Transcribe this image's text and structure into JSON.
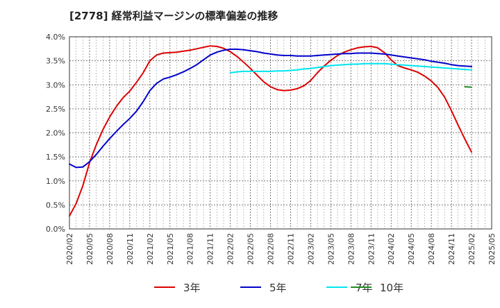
{
  "chart_data": {
    "type": "line",
    "title": "[2778]  経常利益マージンの標準偏差の推移",
    "xlabel": "",
    "ylabel": "",
    "x_ticks": [
      "2020/02",
      "2020/05",
      "2020/08",
      "2020/11",
      "2021/02",
      "2021/05",
      "2021/08",
      "2021/11",
      "2022/02",
      "2022/05",
      "2022/08",
      "2022/11",
      "2023/02",
      "2023/05",
      "2023/08",
      "2023/11",
      "2024/02",
      "2024/05",
      "2024/08",
      "2024/11",
      "2025/02",
      "2025/05"
    ],
    "y_ticks": [
      "0.0%",
      "0.5%",
      "1.0%",
      "1.5%",
      "2.0%",
      "2.5%",
      "3.0%",
      "3.5%",
      "4.0%"
    ],
    "ylim": [
      0,
      4.0
    ],
    "y_unit": "%",
    "grid": true,
    "legend_position": "bottom",
    "series": [
      {
        "name": "3年",
        "color": "#dd0000",
        "points": [
          [
            "2020/02",
            0.27
          ],
          [
            "2020/03",
            0.53
          ],
          [
            "2020/04",
            0.9
          ],
          [
            "2020/05",
            1.38
          ],
          [
            "2020/06",
            1.75
          ],
          [
            "2020/07",
            2.07
          ],
          [
            "2020/08",
            2.33
          ],
          [
            "2020/09",
            2.55
          ],
          [
            "2020/10",
            2.73
          ],
          [
            "2020/11",
            2.87
          ],
          [
            "2020/12",
            3.05
          ],
          [
            "2021/01",
            3.25
          ],
          [
            "2021/02",
            3.5
          ],
          [
            "2021/03",
            3.62
          ],
          [
            "2021/04",
            3.66
          ],
          [
            "2021/05",
            3.67
          ],
          [
            "2021/06",
            3.68
          ],
          [
            "2021/07",
            3.7
          ],
          [
            "2021/08",
            3.72
          ],
          [
            "2021/09",
            3.75
          ],
          [
            "2021/10",
            3.78
          ],
          [
            "2021/11",
            3.81
          ],
          [
            "2021/12",
            3.8
          ],
          [
            "2022/01",
            3.76
          ],
          [
            "2022/02",
            3.69
          ],
          [
            "2022/03",
            3.59
          ],
          [
            "2022/04",
            3.47
          ],
          [
            "2022/05",
            3.34
          ],
          [
            "2022/06",
            3.2
          ],
          [
            "2022/07",
            3.06
          ],
          [
            "2022/08",
            2.96
          ],
          [
            "2022/09",
            2.9
          ],
          [
            "2022/10",
            2.88
          ],
          [
            "2022/11",
            2.89
          ],
          [
            "2022/12",
            2.92
          ],
          [
            "2023/01",
            2.98
          ],
          [
            "2023/02",
            3.09
          ],
          [
            "2023/03",
            3.25
          ],
          [
            "2023/04",
            3.39
          ],
          [
            "2023/05",
            3.51
          ],
          [
            "2023/06",
            3.61
          ],
          [
            "2023/07",
            3.68
          ],
          [
            "2023/08",
            3.73
          ],
          [
            "2023/09",
            3.77
          ],
          [
            "2023/10",
            3.79
          ],
          [
            "2023/11",
            3.8
          ],
          [
            "2023/12",
            3.77
          ],
          [
            "2024/01",
            3.67
          ],
          [
            "2024/02",
            3.52
          ],
          [
            "2024/03",
            3.4
          ],
          [
            "2024/04",
            3.35
          ],
          [
            "2024/05",
            3.31
          ],
          [
            "2024/06",
            3.26
          ],
          [
            "2024/07",
            3.18
          ],
          [
            "2024/08",
            3.08
          ],
          [
            "2024/09",
            2.94
          ],
          [
            "2024/10",
            2.74
          ],
          [
            "2024/11",
            2.46
          ],
          [
            "2024/12",
            2.16
          ],
          [
            "2025/01",
            1.87
          ],
          [
            "2025/02",
            1.6
          ]
        ]
      },
      {
        "name": "5年",
        "color": "#0000cc",
        "points": [
          [
            "2020/02",
            1.35
          ],
          [
            "2020/03",
            1.28
          ],
          [
            "2020/04",
            1.29
          ],
          [
            "2020/05",
            1.4
          ],
          [
            "2020/06",
            1.55
          ],
          [
            "2020/07",
            1.72
          ],
          [
            "2020/08",
            1.88
          ],
          [
            "2020/09",
            2.03
          ],
          [
            "2020/10",
            2.17
          ],
          [
            "2020/11",
            2.3
          ],
          [
            "2020/12",
            2.45
          ],
          [
            "2021/01",
            2.65
          ],
          [
            "2021/02",
            2.88
          ],
          [
            "2021/03",
            3.03
          ],
          [
            "2021/04",
            3.12
          ],
          [
            "2021/05",
            3.16
          ],
          [
            "2021/06",
            3.21
          ],
          [
            "2021/07",
            3.27
          ],
          [
            "2021/08",
            3.34
          ],
          [
            "2021/09",
            3.42
          ],
          [
            "2021/10",
            3.52
          ],
          [
            "2021/11",
            3.62
          ],
          [
            "2021/12",
            3.68
          ],
          [
            "2022/01",
            3.72
          ],
          [
            "2022/02",
            3.74
          ],
          [
            "2022/03",
            3.74
          ],
          [
            "2022/04",
            3.73
          ],
          [
            "2022/05",
            3.71
          ],
          [
            "2022/06",
            3.69
          ],
          [
            "2022/07",
            3.66
          ],
          [
            "2022/08",
            3.64
          ],
          [
            "2022/09",
            3.62
          ],
          [
            "2022/10",
            3.61
          ],
          [
            "2022/11",
            3.61
          ],
          [
            "2022/12",
            3.6
          ],
          [
            "2023/01",
            3.6
          ],
          [
            "2023/02",
            3.6
          ],
          [
            "2023/03",
            3.61
          ],
          [
            "2023/04",
            3.62
          ],
          [
            "2023/05",
            3.63
          ],
          [
            "2023/06",
            3.64
          ],
          [
            "2023/07",
            3.65
          ],
          [
            "2023/08",
            3.65
          ],
          [
            "2023/09",
            3.66
          ],
          [
            "2023/10",
            3.66
          ],
          [
            "2023/11",
            3.66
          ],
          [
            "2023/12",
            3.65
          ],
          [
            "2024/01",
            3.64
          ],
          [
            "2024/02",
            3.62
          ],
          [
            "2024/03",
            3.6
          ],
          [
            "2024/04",
            3.58
          ],
          [
            "2024/05",
            3.56
          ],
          [
            "2024/06",
            3.54
          ],
          [
            "2024/07",
            3.52
          ],
          [
            "2024/08",
            3.49
          ],
          [
            "2024/09",
            3.47
          ],
          [
            "2024/10",
            3.45
          ],
          [
            "2024/11",
            3.42
          ],
          [
            "2024/12",
            3.4
          ],
          [
            "2025/01",
            3.39
          ],
          [
            "2025/02",
            3.38
          ]
        ]
      },
      {
        "name": "7年",
        "color": "#00e5ee",
        "points": [
          [
            "2022/02",
            3.25
          ],
          [
            "2022/03",
            3.27
          ],
          [
            "2022/04",
            3.28
          ],
          [
            "2022/05",
            3.28
          ],
          [
            "2022/06",
            3.28
          ],
          [
            "2022/07",
            3.28
          ],
          [
            "2022/08",
            3.28
          ],
          [
            "2022/09",
            3.29
          ],
          [
            "2022/10",
            3.29
          ],
          [
            "2022/11",
            3.3
          ],
          [
            "2022/12",
            3.31
          ],
          [
            "2023/01",
            3.33
          ],
          [
            "2023/02",
            3.34
          ],
          [
            "2023/03",
            3.36
          ],
          [
            "2023/04",
            3.38
          ],
          [
            "2023/05",
            3.4
          ],
          [
            "2023/06",
            3.41
          ],
          [
            "2023/07",
            3.42
          ],
          [
            "2023/08",
            3.43
          ],
          [
            "2023/09",
            3.43
          ],
          [
            "2023/10",
            3.44
          ],
          [
            "2023/11",
            3.44
          ],
          [
            "2023/12",
            3.44
          ],
          [
            "2024/01",
            3.44
          ],
          [
            "2024/02",
            3.43
          ],
          [
            "2024/03",
            3.42
          ],
          [
            "2024/04",
            3.41
          ],
          [
            "2024/05",
            3.4
          ],
          [
            "2024/06",
            3.39
          ],
          [
            "2024/07",
            3.38
          ],
          [
            "2024/08",
            3.37
          ],
          [
            "2024/09",
            3.36
          ],
          [
            "2024/10",
            3.35
          ],
          [
            "2024/11",
            3.34
          ],
          [
            "2024/12",
            3.33
          ],
          [
            "2025/01",
            3.32
          ],
          [
            "2025/02",
            3.31
          ]
        ]
      },
      {
        "name": "10年",
        "color": "#228b22",
        "points": [
          [
            "2025/01",
            2.96
          ],
          [
            "2025/02",
            2.95
          ]
        ]
      }
    ]
  }
}
